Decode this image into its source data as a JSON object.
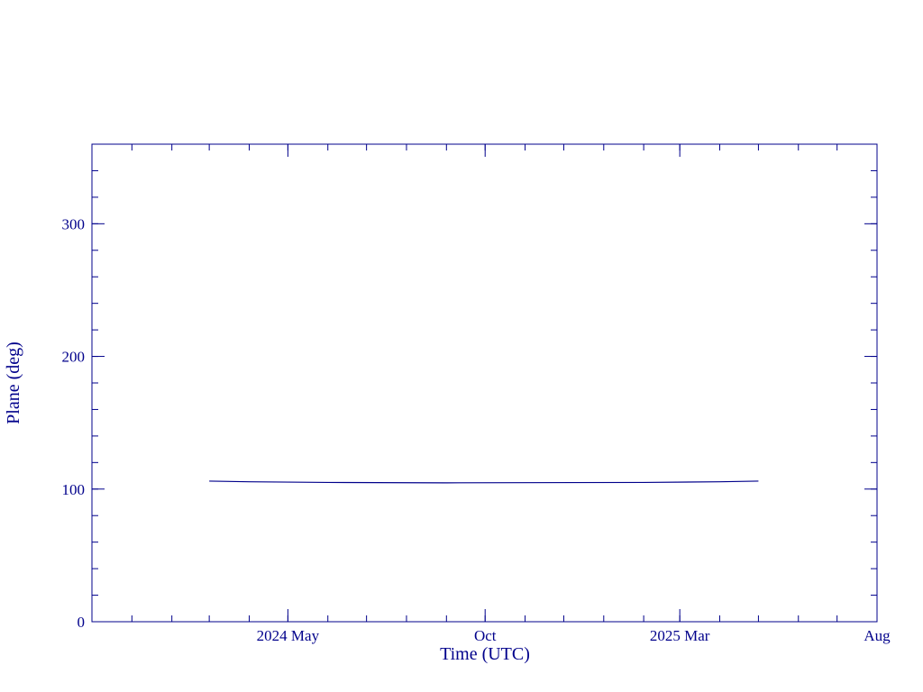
{
  "chart_data": {
    "type": "line",
    "x_label": "Time (UTC)",
    "y_label": "Plane (deg)",
    "x": [
      "2024-03",
      "2024-04",
      "2024-06",
      "2024-09",
      "2025-02",
      "2025-04",
      "2025-05"
    ],
    "values": [
      106,
      105.5,
      105,
      104.7,
      105,
      105.5,
      106
    ],
    "color": "#00008b",
    "xlim": [
      "2023-12",
      "2025-08"
    ],
    "xticks": [
      {
        "value": "2024-05",
        "label": "2024 May"
      },
      {
        "value": "2024-10",
        "label": "Oct"
      },
      {
        "value": "2025-03",
        "label": "2025 Mar"
      },
      {
        "value": "2025-08",
        "label": "Aug"
      }
    ],
    "ylim": [
      0,
      360
    ],
    "yticks": [
      0,
      100,
      200,
      300
    ]
  }
}
